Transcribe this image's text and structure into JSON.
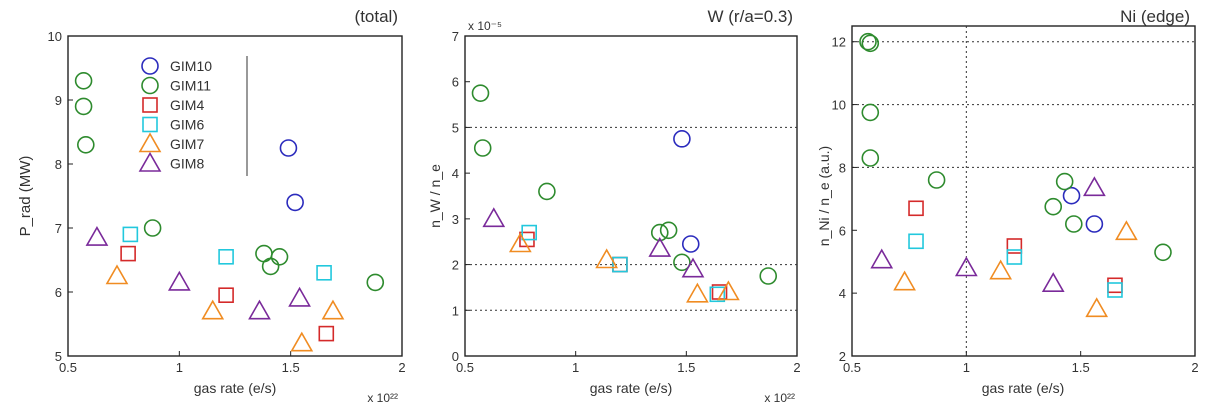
{
  "colors": {
    "GIM10": "#2b2bbd",
    "GIM11": "#2e8b2e",
    "GIM4": "#d42a2a",
    "GIM6": "#22c8dd",
    "GIM7": "#f08c22",
    "GIM8": "#7a2a9a",
    "axis": "#222222",
    "grid": "#333333"
  },
  "chart_data": [
    {
      "type": "scatter",
      "title": "(total)",
      "xlabel": "gas rate (e/s)",
      "ylabel": "P_rad (MW)",
      "x_exponent": "x 10²²",
      "xlim": [
        0.5,
        2
      ],
      "ylim": [
        5,
        10
      ],
      "xticks": [
        "0.5",
        "1",
        "1.5",
        "2"
      ],
      "yticks": [
        "5",
        "6",
        "7",
        "8",
        "9",
        "10"
      ],
      "grid": "none",
      "legend": {
        "placement": "top-center",
        "entries": [
          {
            "name": "GIM10",
            "marker": "circle"
          },
          {
            "name": "GIM11",
            "marker": "circle"
          },
          {
            "name": "GIM4",
            "marker": "square"
          },
          {
            "name": "GIM6",
            "marker": "square"
          },
          {
            "name": "GIM7",
            "marker": "triangle"
          },
          {
            "name": "GIM8",
            "marker": "triangle"
          }
        ]
      },
      "series": [
        {
          "name": "GIM10",
          "x": [
            1.49,
            1.52
          ],
          "y": [
            8.25,
            7.4
          ]
        },
        {
          "name": "GIM11",
          "x": [
            0.57,
            0.57,
            0.58,
            0.88,
            1.38,
            1.41,
            1.45,
            1.88
          ],
          "y": [
            9.3,
            8.9,
            8.3,
            7.0,
            6.6,
            6.4,
            6.55,
            6.15
          ]
        },
        {
          "name": "GIM4",
          "x": [
            0.77,
            1.21,
            1.66
          ],
          "y": [
            6.6,
            5.95,
            5.35
          ]
        },
        {
          "name": "GIM6",
          "x": [
            0.78,
            1.21,
            1.65
          ],
          "y": [
            6.9,
            6.55,
            6.3
          ]
        },
        {
          "name": "GIM7",
          "x": [
            0.72,
            1.15,
            1.55,
            1.69
          ],
          "y": [
            6.25,
            5.7,
            5.2,
            5.7
          ]
        },
        {
          "name": "GIM8",
          "x": [
            0.63,
            1.0,
            1.36,
            1.54
          ],
          "y": [
            6.85,
            6.15,
            5.7,
            5.9
          ]
        }
      ]
    },
    {
      "type": "scatter",
      "title": "W (r/a=0.3)",
      "xlabel": "gas rate (e/s)",
      "ylabel": "n_W / n_e",
      "x_exponent": "x 10²²",
      "y_exponent": "x 10⁻⁵",
      "xlim": [
        0.5,
        2
      ],
      "ylim": [
        0,
        7
      ],
      "xticks": [
        "0.5",
        "1",
        "1.5",
        "2"
      ],
      "yticks": [
        "0",
        "1",
        "2",
        "3",
        "4",
        "5",
        "6",
        "7"
      ],
      "grid": "dotted horizontal at y=1, 2, 5",
      "series": [
        {
          "name": "GIM10",
          "x": [
            1.48,
            1.52
          ],
          "y": [
            4.75,
            2.45
          ]
        },
        {
          "name": "GIM11",
          "x": [
            0.57,
            0.58,
            0.87,
            1.38,
            1.42,
            1.48,
            1.87
          ],
          "y": [
            5.75,
            4.55,
            3.6,
            2.7,
            2.75,
            2.05,
            1.75
          ]
        },
        {
          "name": "GIM4",
          "x": [
            0.78,
            1.2,
            1.65
          ],
          "y": [
            2.55,
            2.0,
            1.4
          ]
        },
        {
          "name": "GIM6",
          "x": [
            0.79,
            1.2,
            1.64
          ],
          "y": [
            2.7,
            2.0,
            1.35
          ]
        },
        {
          "name": "GIM7",
          "x": [
            0.75,
            1.14,
            1.55,
            1.69
          ],
          "y": [
            2.45,
            2.1,
            1.35,
            1.4
          ]
        },
        {
          "name": "GIM8",
          "x": [
            0.63,
            1.38,
            1.53
          ],
          "y": [
            3.0,
            2.35,
            1.9
          ]
        }
      ]
    },
    {
      "type": "scatter",
      "title": "Ni (edge)",
      "xlabel": "gas rate (e/s)",
      "ylabel": "n_Ni / n_e (a.u.)",
      "xlim": [
        0.5,
        2
      ],
      "ylim": [
        2,
        12.5
      ],
      "xticks": [
        "0.5",
        "1",
        "1.5",
        "2"
      ],
      "yticks": [
        "2",
        "4",
        "6",
        "8",
        "10",
        "12"
      ],
      "grid": "dotted horizontal at y=8, 10, 12; dotted vertical at x=1",
      "series": [
        {
          "name": "GIM10",
          "x": [
            1.46,
            1.56
          ],
          "y": [
            7.1,
            6.2
          ]
        },
        {
          "name": "GIM11",
          "x": [
            0.57,
            0.58,
            0.58,
            0.58,
            0.87,
            1.38,
            1.43,
            1.47,
            1.86
          ],
          "y": [
            12.0,
            11.95,
            9.75,
            8.3,
            7.6,
            6.75,
            7.55,
            6.2,
            5.3
          ]
        },
        {
          "name": "GIM4",
          "x": [
            0.78,
            1.21,
            1.65
          ],
          "y": [
            6.7,
            5.5,
            4.25
          ]
        },
        {
          "name": "GIM6",
          "x": [
            0.78,
            1.21,
            1.65
          ],
          "y": [
            5.65,
            5.15,
            4.1
          ]
        },
        {
          "name": "GIM7",
          "x": [
            0.73,
            1.15,
            1.57,
            1.7
          ],
          "y": [
            4.35,
            4.7,
            3.5,
            5.95
          ]
        },
        {
          "name": "GIM8",
          "x": [
            0.63,
            1.0,
            1.38,
            1.56
          ],
          "y": [
            5.05,
            4.8,
            4.3,
            7.35
          ]
        }
      ]
    }
  ]
}
